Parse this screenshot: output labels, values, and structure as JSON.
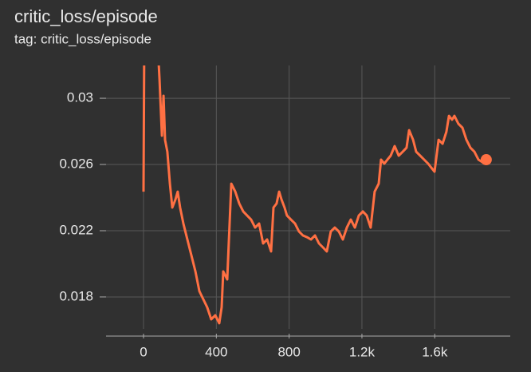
{
  "chart_data": {
    "type": "line",
    "title": "critic_loss/episode",
    "subtitle": "tag: critic_loss/episode",
    "x": [
      0,
      4,
      79,
      88,
      101,
      110,
      118,
      131,
      145,
      158,
      175,
      188,
      201,
      219,
      241,
      263,
      285,
      307,
      329,
      350,
      372,
      394,
      416,
      429,
      438,
      460,
      482,
      504,
      526,
      548,
      569,
      591,
      613,
      635,
      657,
      679,
      701,
      714,
      731,
      745,
      758,
      775,
      788,
      810,
      832,
      854,
      876,
      898,
      920,
      942,
      964,
      986,
      1007,
      1029,
      1051,
      1073,
      1095,
      1117,
      1139,
      1161,
      1183,
      1205,
      1226,
      1248,
      1270,
      1292,
      1305,
      1323,
      1340,
      1358,
      1380,
      1402,
      1424,
      1445,
      1459,
      1481,
      1498,
      1520,
      1542,
      1564,
      1581,
      1599,
      1621,
      1643,
      1664,
      1678,
      1695,
      1708,
      1730,
      1752,
      1774,
      1796,
      1818,
      1840,
      1862,
      1883
    ],
    "series": [
      {
        "name": "critic_loss/episode",
        "color": "#ff7043",
        "values": [
          0.02436,
          0.033,
          0.033,
          0.03111,
          0.02774,
          0.03015,
          0.02749,
          0.02677,
          0.02484,
          0.0234,
          0.02388,
          0.02436,
          0.0234,
          0.02243,
          0.02147,
          0.0205,
          0.01954,
          0.01834,
          0.01785,
          0.01737,
          0.01665,
          0.01689,
          0.01641,
          0.01737,
          0.01954,
          0.01906,
          0.02484,
          0.02436,
          0.02364,
          0.02316,
          0.02292,
          0.02267,
          0.02219,
          0.02243,
          0.02123,
          0.02147,
          0.02075,
          0.0234,
          0.02364,
          0.02436,
          0.02388,
          0.0234,
          0.02292,
          0.02267,
          0.02243,
          0.02195,
          0.02171,
          0.02161,
          0.02147,
          0.02171,
          0.02123,
          0.02099,
          0.02075,
          0.02195,
          0.02219,
          0.02195,
          0.02147,
          0.02219,
          0.02267,
          0.02219,
          0.02292,
          0.02316,
          0.02292,
          0.02219,
          0.02436,
          0.02484,
          0.02629,
          0.02605,
          0.02629,
          0.02653,
          0.02711,
          0.02653,
          0.02677,
          0.02701,
          0.02807,
          0.02749,
          0.02677,
          0.02653,
          0.02629,
          0.02605,
          0.02581,
          0.02557,
          0.02749,
          0.02725,
          0.02798,
          0.02894,
          0.0287,
          0.02894,
          0.02846,
          0.02822,
          0.02749,
          0.02701,
          0.02677,
          0.02629,
          0.02614,
          0.02629
        ]
      }
    ],
    "xlim": [
      -206,
      2015
    ],
    "ylim": [
      0.01607,
      0.03198
    ],
    "xticks": [
      0,
      400,
      800,
      {
        "value": 1200,
        "label": "1.2k"
      },
      {
        "value": 1600,
        "label": "1.6k"
      }
    ],
    "yticks": [
      0.018,
      0.022,
      0.026,
      0.03
    ],
    "grid": true
  }
}
